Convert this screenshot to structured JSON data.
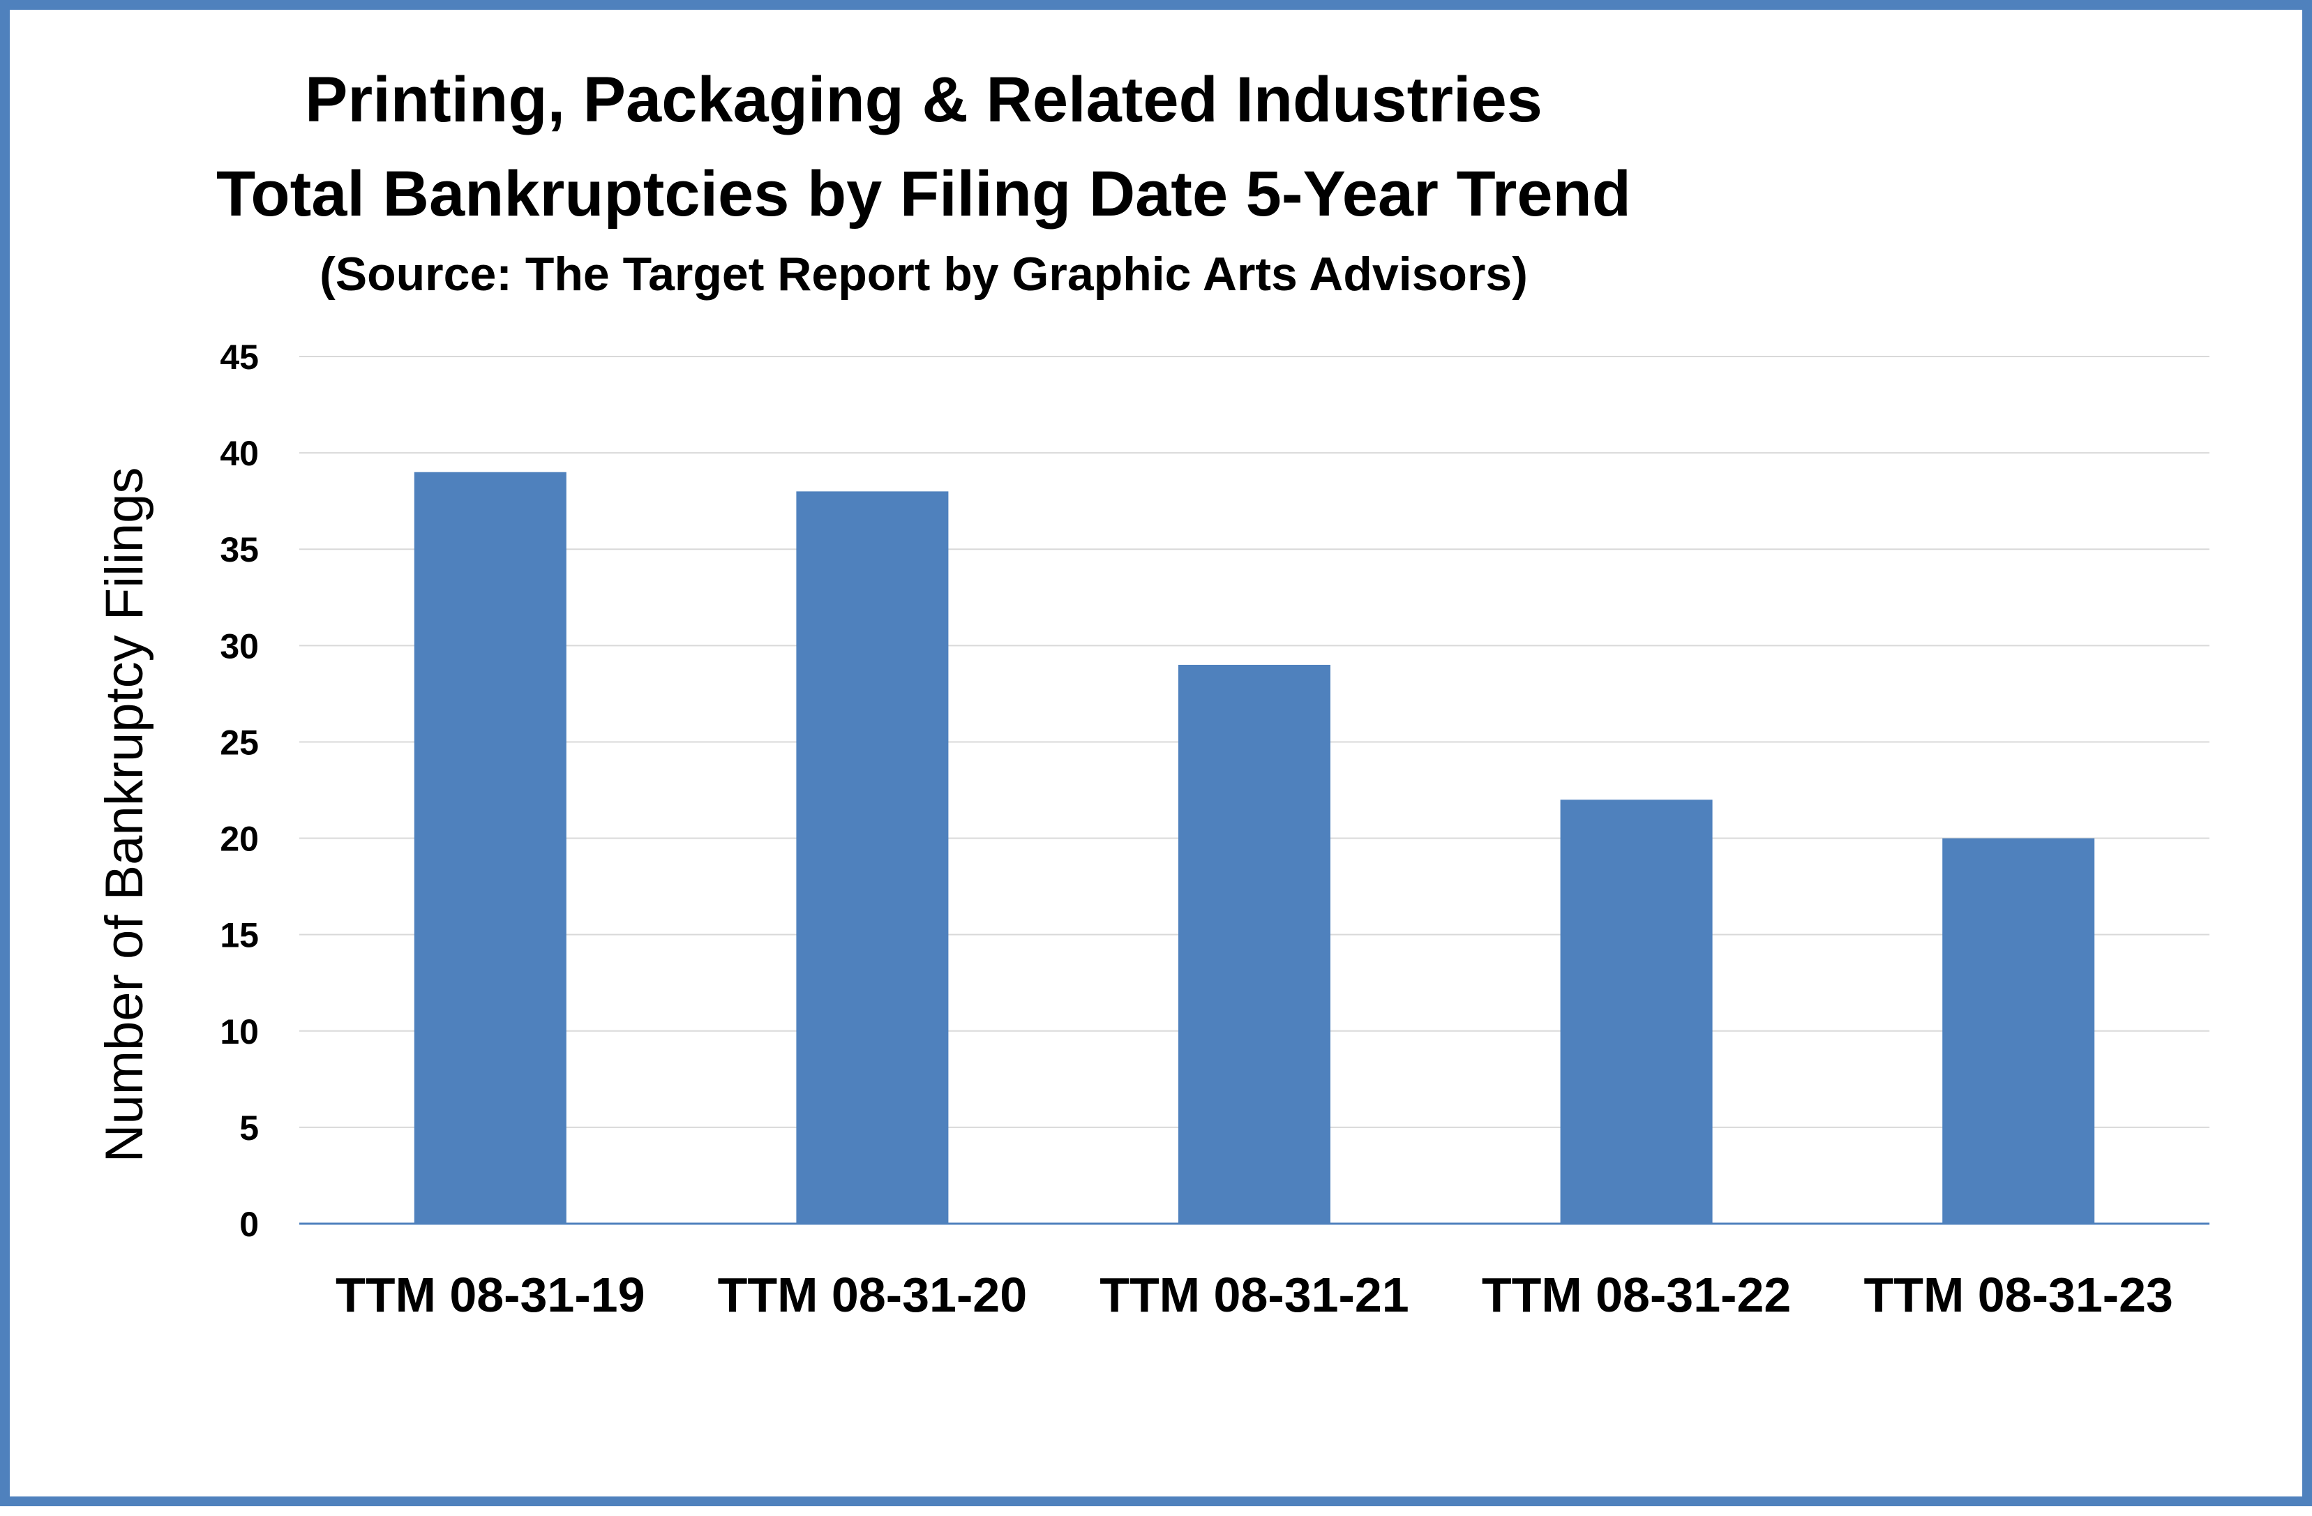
{
  "chart_data": {
    "type": "bar",
    "title_lines": [
      "Printing, Packaging & Related Industries",
      "Total Bankruptcies by Filing Date 5-Year Trend"
    ],
    "subtitle": "(Source: The Target Report by Graphic Arts Advisors)",
    "xlabel": "",
    "ylabel": "Number of Bankruptcy Filings",
    "categories": [
      "TTM 08-31-19",
      "TTM 08-31-20",
      "TTM 08-31-21",
      "TTM 08-31-22",
      "TTM 08-31-23"
    ],
    "values": [
      39,
      38,
      29,
      22,
      20
    ],
    "ylim": [
      0,
      45
    ],
    "yticks": [
      "0",
      "5",
      "10",
      "15",
      "20",
      "25",
      "30",
      "35",
      "40",
      "45"
    ],
    "grid": true,
    "legend": "none",
    "bar_color": "#4F81BD",
    "grid_color": "#D9D9D9",
    "border_color": "#4F81BD"
  }
}
